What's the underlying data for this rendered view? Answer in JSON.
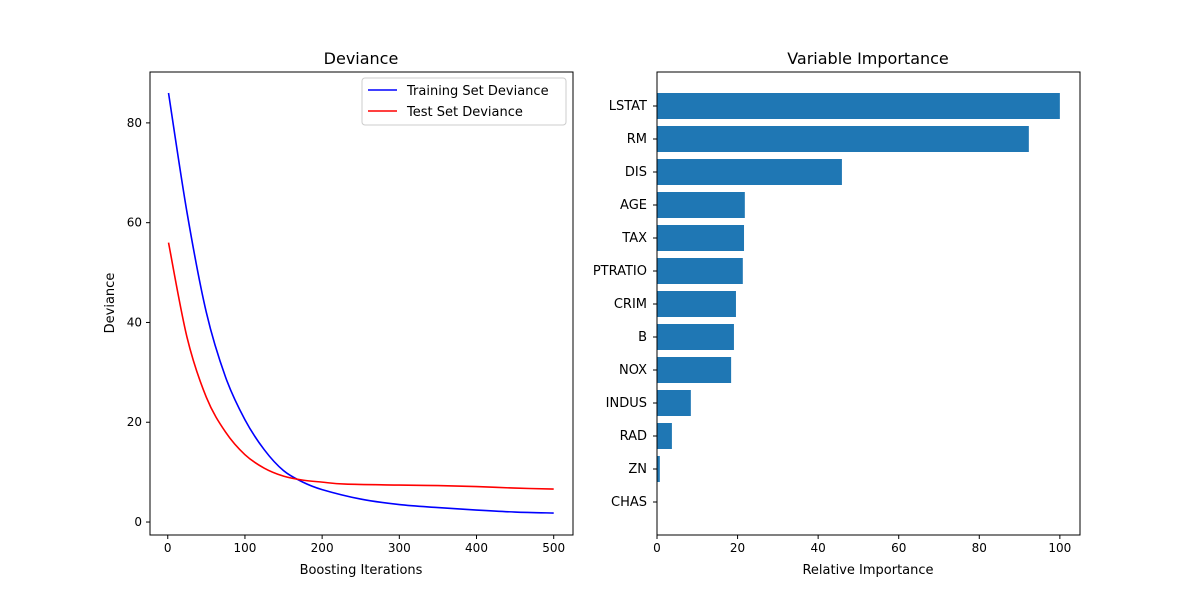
{
  "chart_data": [
    {
      "type": "line",
      "title": "Deviance",
      "xlabel": "Boosting Iterations",
      "ylabel": "Deviance",
      "xlim": [
        -23,
        525
      ],
      "ylim": [
        -2.6,
        90.2
      ],
      "xticks": [
        0,
        100,
        200,
        300,
        400,
        500
      ],
      "yticks": [
        0,
        20,
        40,
        60,
        80
      ],
      "grid": false,
      "legend_position": "upper-right",
      "series": [
        {
          "name": "Training Set Deviance",
          "color": "#0000ff",
          "x": [
            1,
            25,
            50,
            75,
            100,
            125,
            150,
            175,
            200,
            250,
            300,
            350,
            400,
            450,
            500
          ],
          "y": [
            86,
            62,
            42,
            29,
            20.5,
            14.5,
            10.3,
            8,
            6.5,
            4.6,
            3.5,
            2.9,
            2.4,
            2.0,
            1.8
          ]
        },
        {
          "name": "Test Set Deviance",
          "color": "#ff0000",
          "x": [
            1,
            25,
            50,
            75,
            100,
            125,
            150,
            175,
            200,
            230,
            300,
            350,
            400,
            450,
            500
          ],
          "y": [
            56,
            37,
            25,
            18,
            13.5,
            10.8,
            9.2,
            8.4,
            8.0,
            7.6,
            7.4,
            7.3,
            7.1,
            6.8,
            6.6
          ]
        }
      ]
    },
    {
      "type": "bar",
      "orientation": "horizontal",
      "title": "Variable Importance",
      "xlabel": "Relative Importance",
      "ylabel": "",
      "xlim": [
        0,
        105
      ],
      "xticks": [
        0,
        20,
        40,
        60,
        80,
        100
      ],
      "grid": false,
      "color": "#1f77b4",
      "categories": [
        "LSTAT",
        "RM",
        "DIS",
        "AGE",
        "TAX",
        "PTRATIO",
        "CRIM",
        "B",
        "NOX",
        "INDUS",
        "RAD",
        "ZN",
        "CHAS"
      ],
      "values": [
        100,
        92.3,
        45.9,
        21.8,
        21.6,
        21.3,
        19.6,
        19.1,
        18.4,
        8.4,
        3.7,
        0.7,
        0
      ]
    }
  ]
}
